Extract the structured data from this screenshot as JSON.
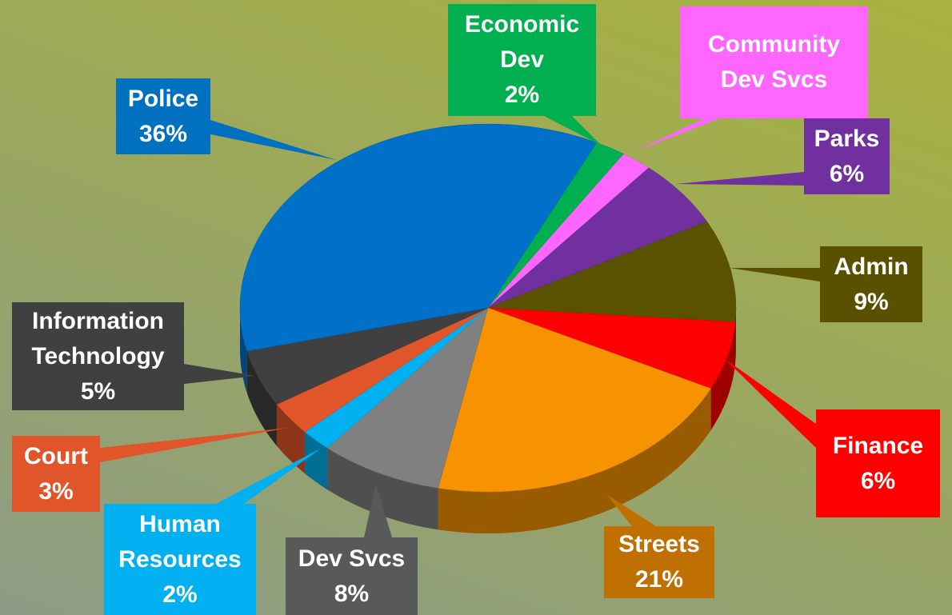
{
  "chart_data": {
    "type": "pie",
    "categories": [
      "Economic Dev",
      "Community Dev Svcs",
      "Parks",
      "Admin",
      "Finance",
      "Streets",
      "Dev Svcs",
      "Human Resources",
      "Court",
      "Information Technology",
      "Police"
    ],
    "values": [
      2,
      2,
      6,
      9,
      6,
      21,
      8,
      2,
      3,
      5,
      36
    ],
    "value_labels": [
      "2%",
      null,
      "6%",
      "9%",
      "6%",
      "21%",
      "8%",
      "2%",
      "3%",
      "5%",
      "36%"
    ],
    "colors": [
      "#00b050",
      "#ff66ff",
      "#7030a0",
      "#5a5200",
      "#ff0000",
      "#f79200",
      "#808080",
      "#00b0f0",
      "#e1552a",
      "#404040",
      "#0070c8"
    ]
  }
}
